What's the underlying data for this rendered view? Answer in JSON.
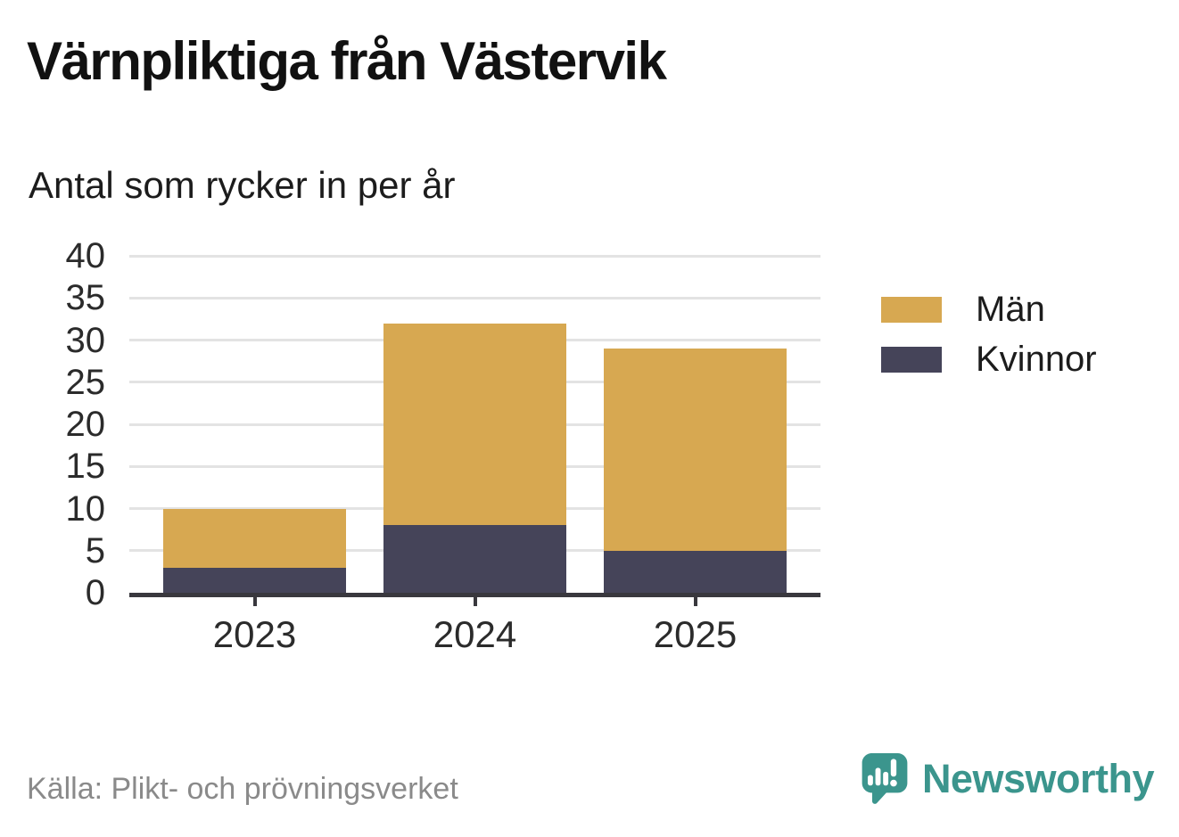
{
  "header": {
    "title": "Värnpliktiga från Västervik",
    "subtitle": "Antal som rycker in per år"
  },
  "chart_data": {
    "type": "bar",
    "stacked": true,
    "title": "Värnpliktiga från Västervik",
    "subtitle": "Antal som rycker in per år",
    "categories": [
      "2023",
      "2024",
      "2025"
    ],
    "series": [
      {
        "name": "Män",
        "color": "#d7a851",
        "values": [
          7,
          24,
          24
        ]
      },
      {
        "name": "Kvinnor",
        "color": "#454459",
        "values": [
          3,
          8,
          5
        ]
      }
    ],
    "stack_totals": [
      10,
      32,
      29
    ],
    "ylim": [
      0,
      40
    ],
    "yticks": [
      0,
      5,
      10,
      15,
      20,
      25,
      30,
      35,
      40
    ],
    "xlabel": "",
    "ylabel": "",
    "grid": "horizontal",
    "legend_position": "right",
    "grid_color": "#e3e3e3",
    "axis_color": "#39383e"
  },
  "footer": {
    "source": "Källa: Plikt- och prövningsverket",
    "brand": "Newsworthy",
    "brand_color": "#3b958d"
  }
}
